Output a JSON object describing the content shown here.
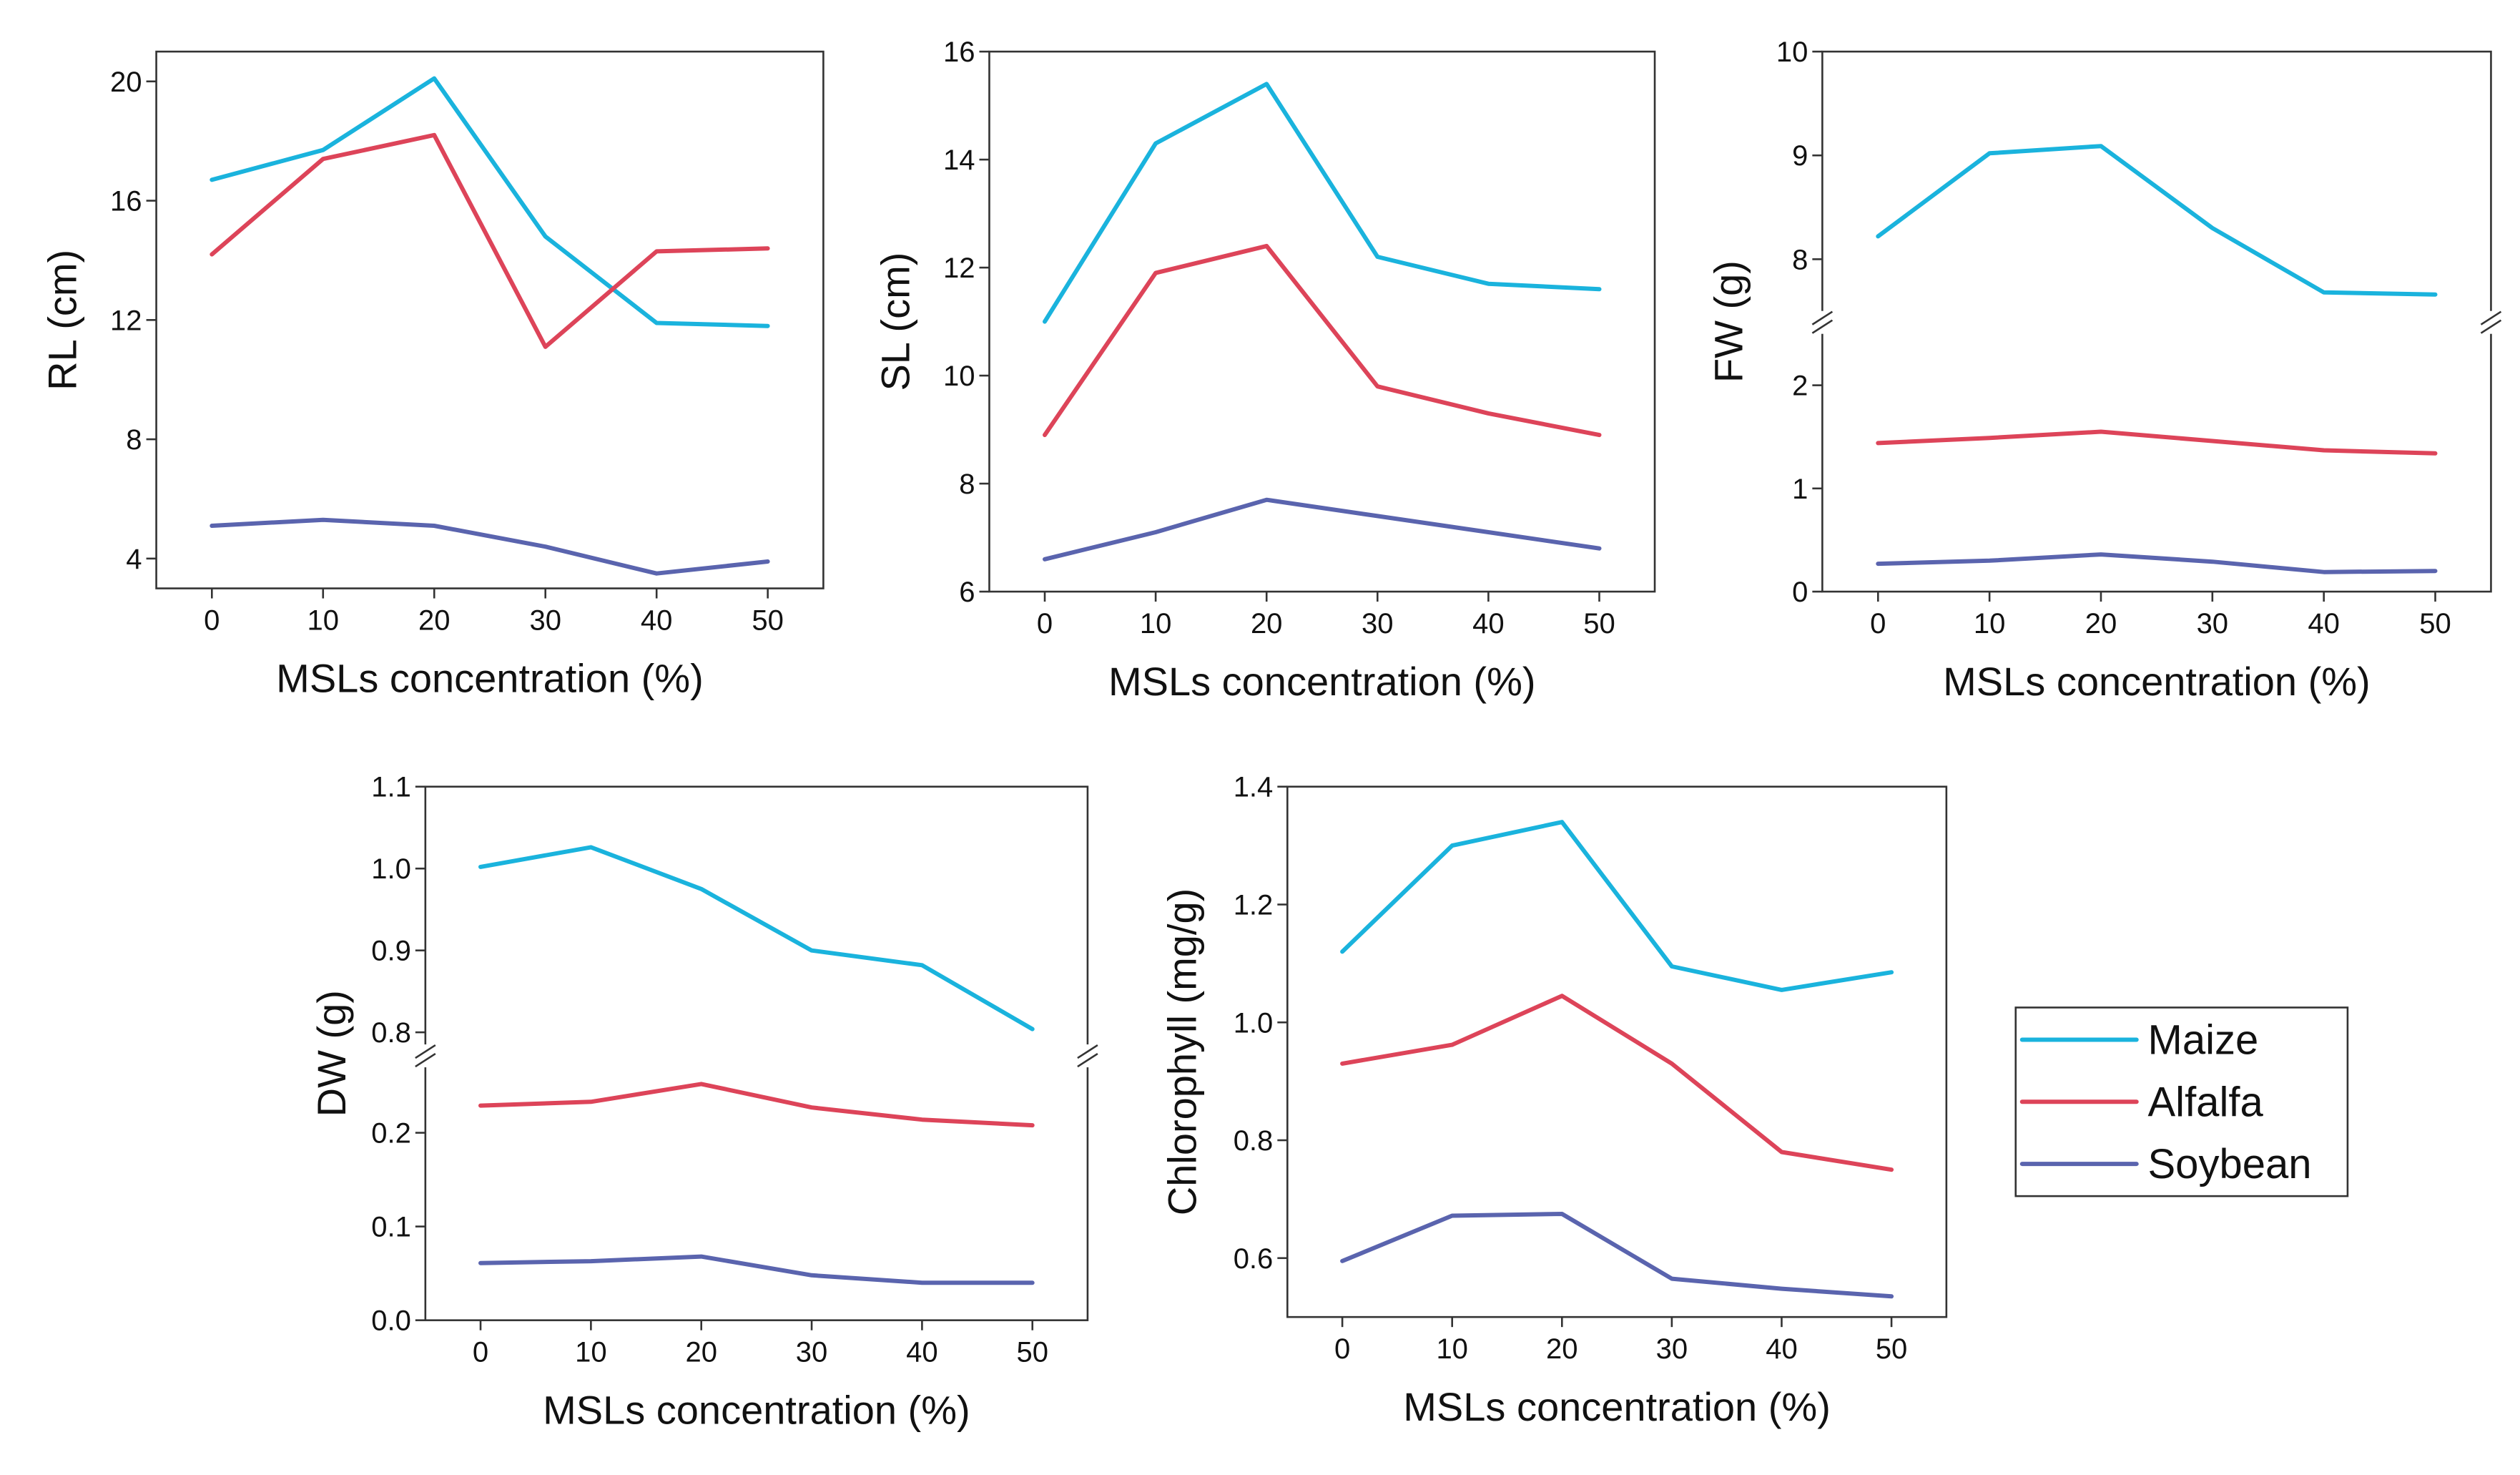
{
  "colors": {
    "Maize": "#1ab3dd",
    "Alfalfa": "#dd4459",
    "Soybean": "#5a64ae"
  },
  "legend": {
    "entries": [
      "Maize",
      "Alfalfa",
      "Soybean"
    ]
  },
  "chart_data": [
    {
      "id": "rl",
      "type": "line",
      "xlabel": "MSLs concentration (%)",
      "ylabel": "RL (cm)",
      "x": [
        0,
        10,
        20,
        30,
        40,
        50
      ],
      "xticks": [
        "0",
        "10",
        "20",
        "30",
        "40",
        "50"
      ],
      "xlim": [
        -5,
        55
      ],
      "ylim": [
        3,
        21
      ],
      "yticks": [
        4,
        8,
        12,
        16,
        20
      ],
      "ytick_labels": [
        "4",
        "8",
        "12",
        "16",
        "20"
      ],
      "series": [
        {
          "name": "Maize",
          "values": [
            16.7,
            17.7,
            20.1,
            14.8,
            11.9,
            11.8
          ]
        },
        {
          "name": "Alfalfa",
          "values": [
            14.2,
            17.4,
            18.2,
            11.1,
            14.3,
            14.4
          ]
        },
        {
          "name": "Soybean",
          "values": [
            5.1,
            5.3,
            5.1,
            4.4,
            3.5,
            3.9
          ]
        }
      ]
    },
    {
      "id": "sl",
      "type": "line",
      "xlabel": "MSLs concentration (%)",
      "ylabel": "SL (cm)",
      "x": [
        0,
        10,
        20,
        30,
        40,
        50
      ],
      "xticks": [
        "0",
        "10",
        "20",
        "30",
        "40",
        "50"
      ],
      "xlim": [
        -5,
        55
      ],
      "ylim": [
        6,
        16
      ],
      "yticks": [
        6,
        8,
        10,
        12,
        14,
        16
      ],
      "ytick_labels": [
        "6",
        "8",
        "10",
        "12",
        "14",
        "16"
      ],
      "series": [
        {
          "name": "Maize",
          "values": [
            11.0,
            14.3,
            15.4,
            12.2,
            11.7,
            11.6
          ]
        },
        {
          "name": "Alfalfa",
          "values": [
            8.9,
            11.9,
            12.4,
            9.8,
            9.3,
            8.9
          ]
        },
        {
          "name": "Soybean",
          "values": [
            6.6,
            7.1,
            7.7,
            7.4,
            7.1,
            6.8
          ]
        }
      ]
    },
    {
      "id": "fw",
      "type": "line",
      "xlabel": "MSLs concentration (%)",
      "ylabel": "FW (g)",
      "x": [
        0,
        10,
        20,
        30,
        40,
        50
      ],
      "xticks": [
        "0",
        "10",
        "20",
        "30",
        "40",
        "50"
      ],
      "xlim": [
        -5,
        55
      ],
      "axis_break": true,
      "segments": [
        {
          "range": [
            0,
            2.5
          ],
          "ticks": [
            0,
            1,
            2
          ],
          "tick_labels": [
            "0",
            "1",
            "2"
          ]
        },
        {
          "range": [
            7.5,
            10
          ],
          "ticks": [
            8,
            9,
            10
          ],
          "tick_labels": [
            "8",
            "9",
            "10"
          ]
        }
      ],
      "series": [
        {
          "name": "Maize",
          "values": [
            8.22,
            9.02,
            9.09,
            8.3,
            7.68,
            7.66
          ]
        },
        {
          "name": "Alfalfa",
          "values": [
            1.44,
            1.49,
            1.55,
            1.46,
            1.37,
            1.34
          ]
        },
        {
          "name": "Soybean",
          "values": [
            0.27,
            0.3,
            0.36,
            0.29,
            0.19,
            0.2
          ]
        }
      ]
    },
    {
      "id": "dw",
      "type": "line",
      "xlabel": "MSLs concentration (%)",
      "ylabel": "DW (g)",
      "x": [
        0,
        10,
        20,
        30,
        40,
        50
      ],
      "xticks": [
        "0",
        "10",
        "20",
        "30",
        "40",
        "50"
      ],
      "xlim": [
        -5,
        55
      ],
      "axis_break": true,
      "segments": [
        {
          "range": [
            0,
            0.27
          ],
          "ticks": [
            0,
            0.1,
            0.2
          ],
          "tick_labels": [
            "0.0",
            "0.1",
            "0.2"
          ]
        },
        {
          "range": [
            0.785,
            1.1
          ],
          "ticks": [
            0.8,
            0.9,
            1.0,
            1.1
          ],
          "tick_labels": [
            "0.8",
            "0.9",
            "1.0",
            "1.1"
          ]
        }
      ],
      "series": [
        {
          "name": "Maize",
          "values": [
            1.002,
            1.026,
            0.975,
            0.9,
            0.882,
            0.804
          ]
        },
        {
          "name": "Alfalfa",
          "values": [
            0.229,
            0.233,
            0.252,
            0.227,
            0.214,
            0.208
          ]
        },
        {
          "name": "Soybean",
          "values": [
            0.061,
            0.063,
            0.068,
            0.048,
            0.04,
            0.04
          ]
        }
      ]
    },
    {
      "id": "chl",
      "type": "line",
      "xlabel": "MSLs concentration (%)",
      "ylabel": "Chlorophyll (mg/g)",
      "x": [
        0,
        10,
        20,
        30,
        40,
        50
      ],
      "xticks": [
        "0",
        "10",
        "20",
        "30",
        "40",
        "50"
      ],
      "xlim": [
        -5,
        55
      ],
      "ylim": [
        0.5,
        1.4
      ],
      "yticks": [
        0.6,
        0.8,
        1.0,
        1.2,
        1.4
      ],
      "ytick_labels": [
        "0.6",
        "0.8",
        "1.0",
        "1.2",
        "1.4"
      ],
      "series": [
        {
          "name": "Maize",
          "values": [
            1.12,
            1.3,
            1.34,
            1.095,
            1.055,
            1.085
          ]
        },
        {
          "name": "Alfalfa",
          "values": [
            0.93,
            0.962,
            1.045,
            0.93,
            0.78,
            0.75
          ]
        },
        {
          "name": "Soybean",
          "values": [
            0.595,
            0.672,
            0.675,
            0.565,
            0.548,
            0.535
          ]
        }
      ]
    }
  ]
}
